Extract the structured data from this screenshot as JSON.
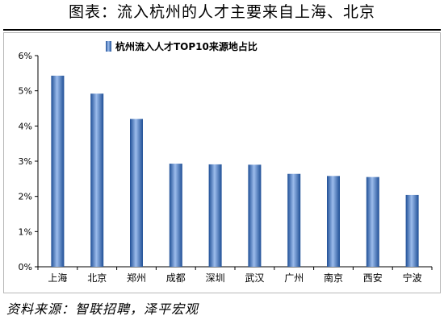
{
  "page": {
    "title": "图表：流入杭州的人才主要来自上海、北京",
    "source": "资料来源：智联招聘，泽平宏观"
  },
  "chart_data": {
    "type": "bar",
    "legend": "杭州流入人才TOP10来源地占比",
    "legend_position": "top",
    "categories": [
      "上海",
      "北京",
      "郑州",
      "成都",
      "深圳",
      "武汉",
      "广州",
      "南京",
      "西安",
      "宁波"
    ],
    "series": [
      {
        "name": "杭州流入人才TOP10来源地占比",
        "values": [
          5.43,
          4.92,
          4.2,
          2.93,
          2.91,
          2.9,
          2.64,
          2.58,
          2.55,
          2.04
        ]
      }
    ],
    "ylim": [
      0,
      6
    ],
    "yticks": [
      "0%",
      "1%",
      "2%",
      "3%",
      "4%",
      "5%",
      "6%"
    ],
    "ylabel": "",
    "xlabel": "",
    "grid": false,
    "bar_color": "#4f7fc4"
  }
}
